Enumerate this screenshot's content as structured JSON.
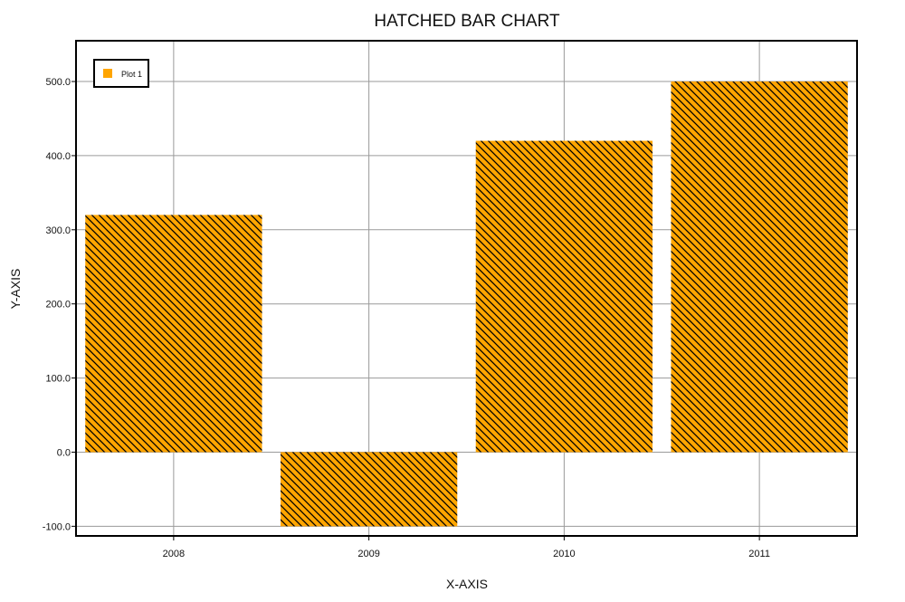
{
  "chart_data": {
    "type": "bar",
    "title": "HATCHED BAR CHART",
    "xlabel": "X-AXIS",
    "ylabel": "Y-AXIS",
    "categories": [
      "2008",
      "2009",
      "2010",
      "2011"
    ],
    "series": [
      {
        "name": "Plot 1",
        "values": [
          320,
          -100,
          420,
          500
        ]
      }
    ],
    "ylim": [
      -113,
      555
    ],
    "yticks": [
      -100,
      0,
      100,
      200,
      300,
      400,
      500
    ],
    "ytick_labels": [
      "-100.0",
      "0.0",
      "100.0",
      "200.0",
      "300.0",
      "400.0",
      "500.0"
    ],
    "grid": true,
    "legend_position": "top-left",
    "bar_fill": "hatched",
    "colors": {
      "bar": "#FFA500",
      "hatch": "#000000",
      "grid": "#9a9a9a",
      "frame": "#000000"
    }
  }
}
